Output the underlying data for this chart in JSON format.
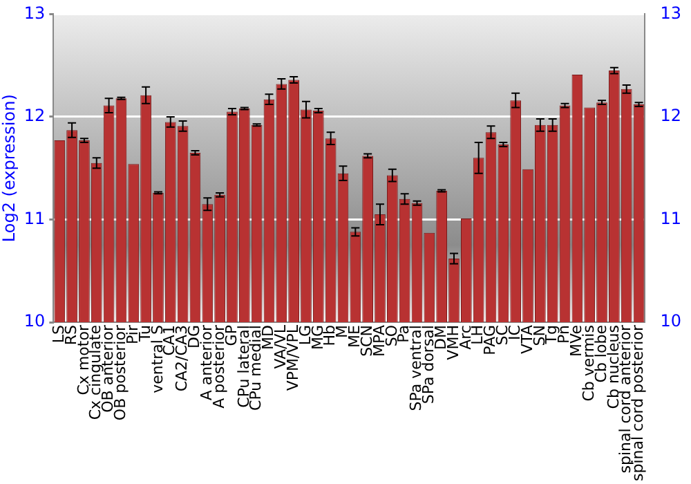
{
  "chart_data": {
    "type": "bar",
    "ylabel": "Log2 (expression)",
    "categories": [
      "LS",
      "RS",
      "Cx motor",
      "Cx cingulate",
      "OB anterior",
      "OB posterior",
      "Pir",
      "Tu",
      "ventral S",
      "CA1",
      "CA2/CA3",
      "DG",
      "A anterior",
      "A posterior",
      "GP",
      "CPu lateral",
      "CPu medial",
      "MD",
      "VA/VL",
      "VPM/VPL",
      "LG",
      "MG",
      "Hb",
      "M",
      "ME",
      "SCN",
      "MPA",
      "SO",
      "Pa",
      "SPa ventral",
      "SPa dorsal",
      "DM",
      "VMH",
      "Arc",
      "LH",
      "PAG",
      "SC",
      "IC",
      "VTA",
      "SN",
      "Tg",
      "Pn",
      "MVe",
      "Cb vermis",
      "Cb lobe",
      "Cb nucleus",
      "spinal cord anterior",
      "spinal cord posterior"
    ],
    "values": [
      11.77,
      11.87,
      11.77,
      11.55,
      12.11,
      12.18,
      11.54,
      12.21,
      11.26,
      11.95,
      11.91,
      11.65,
      11.15,
      11.24,
      12.05,
      12.08,
      11.92,
      12.17,
      12.32,
      12.36,
      12.07,
      12.06,
      11.79,
      11.45,
      10.88,
      11.62,
      11.05,
      11.43,
      11.2,
      11.16,
      10.87,
      11.28,
      10.62,
      11.01,
      11.6,
      11.85,
      11.73,
      12.16,
      11.49,
      11.92,
      11.92,
      12.11,
      12.41,
      12.09,
      12.14,
      12.45,
      12.27,
      12.12
    ],
    "errors": [
      null,
      0.07,
      0.02,
      0.05,
      0.07,
      0.01,
      null,
      0.08,
      0.01,
      0.05,
      0.05,
      0.02,
      0.06,
      0.02,
      0.03,
      0.01,
      0.01,
      0.05,
      0.05,
      0.03,
      0.08,
      0.02,
      0.06,
      0.07,
      0.04,
      0.02,
      0.1,
      0.06,
      0.05,
      0.02,
      null,
      0.01,
      0.05,
      null,
      0.15,
      0.06,
      0.02,
      0.07,
      null,
      0.06,
      0.06,
      0.02,
      null,
      null,
      0.02,
      0.03,
      0.04,
      0.02
    ],
    "color": "#b83232",
    "ylim": [
      10,
      13
    ],
    "yticks": [
      10,
      11,
      12,
      13
    ],
    "y2lim": [
      10,
      13
    ],
    "y2ticks": [
      10,
      11,
      12,
      13
    ],
    "grid": "y"
  }
}
